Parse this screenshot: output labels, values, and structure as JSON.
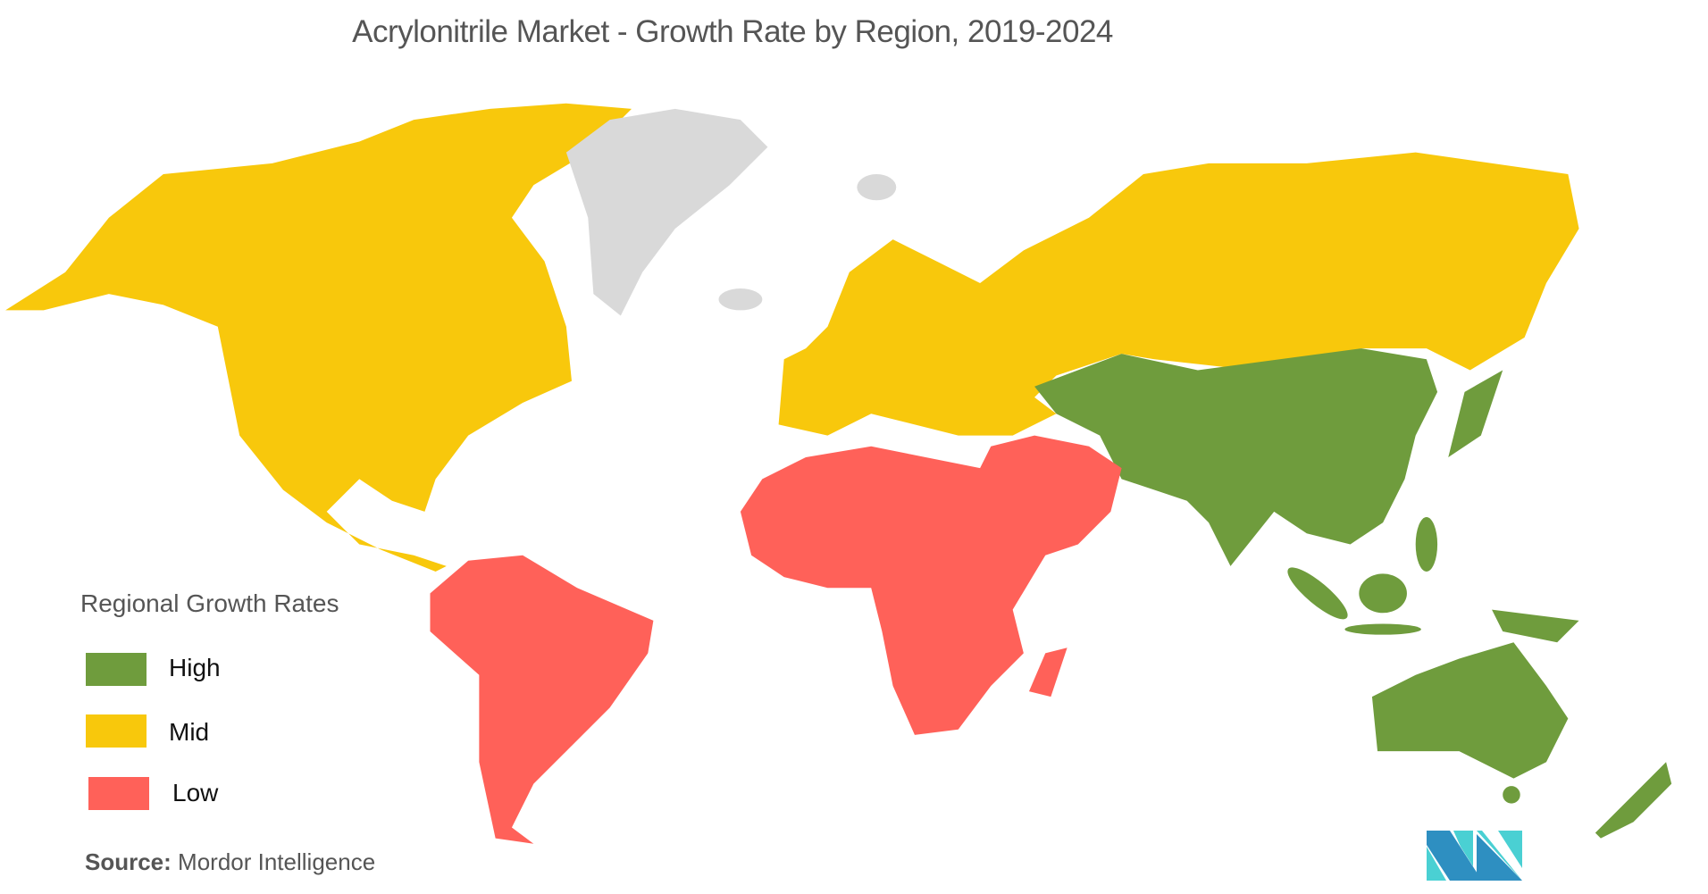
{
  "title": "Acrylonitrile Market - Growth Rate by Region, 2019-2024",
  "legend": {
    "title": "Regional Growth Rates",
    "items": [
      {
        "label": "High",
        "color": "#6f9c3d"
      },
      {
        "label": "Mid",
        "color": "#f8c80c"
      },
      {
        "label": "Low",
        "color": "#ff6159"
      }
    ]
  },
  "regions": {
    "North America": "Mid",
    "Europe": "Mid",
    "Russia": "Mid",
    "Asia-Pacific": "High",
    "South America": "Low",
    "Middle East and Africa": "Low",
    "No data": "#d9d9d9"
  },
  "source": {
    "label": "Source:",
    "value": "Mordor Intelligence"
  },
  "logo": {
    "text": "MI",
    "colors": [
      "#2e8fc1",
      "#4ad0d3"
    ]
  }
}
